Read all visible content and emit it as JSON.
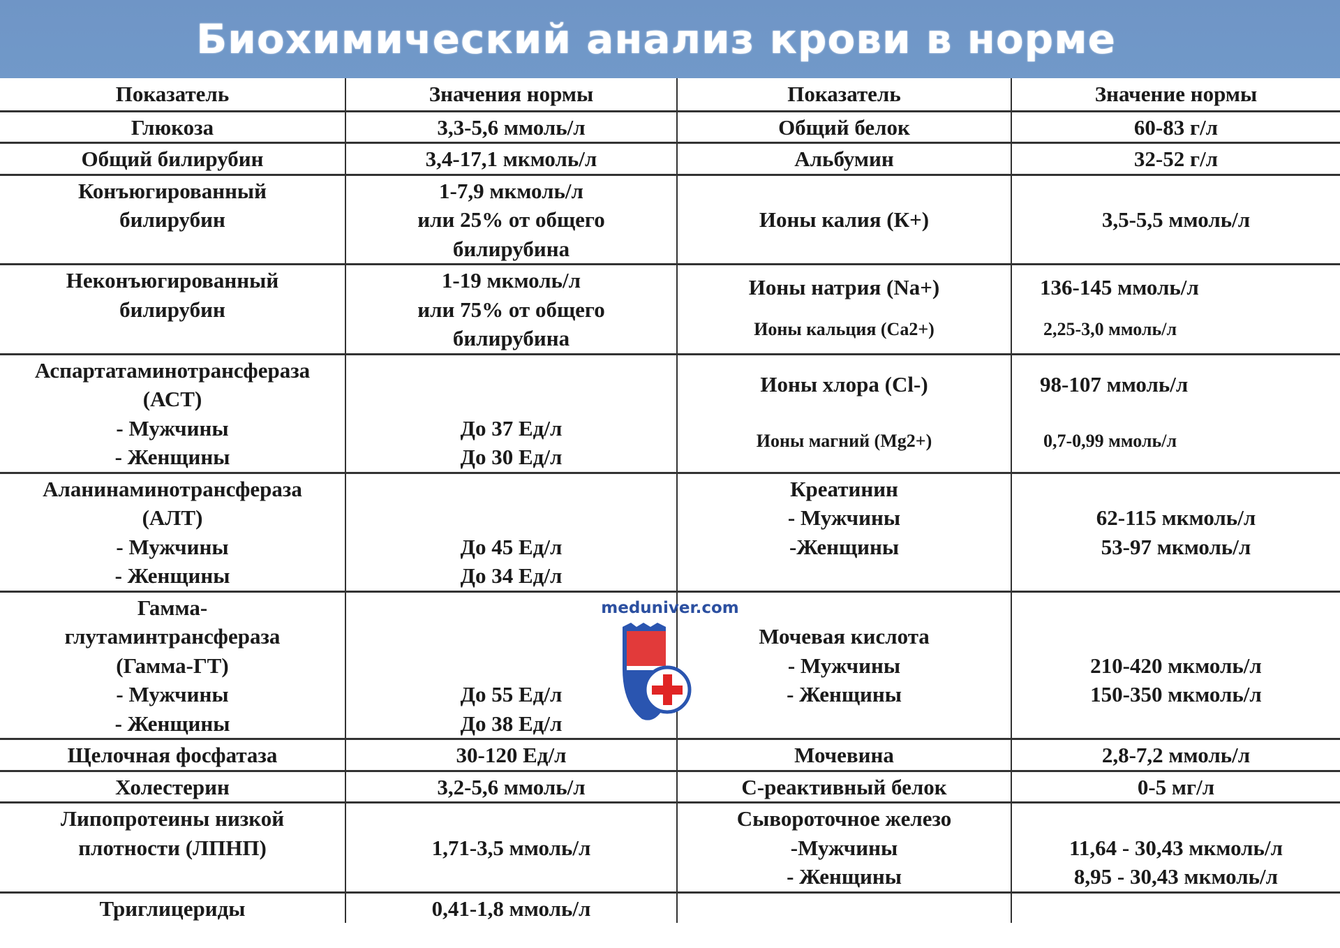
{
  "title": "Биохимический анализ крови в норме",
  "colors": {
    "banner": "#7098c8",
    "title_text": "#ffffff",
    "logo_red": "#e02424",
    "logo_blue": "#2a55b0"
  },
  "headers": [
    "Показатель",
    "Значения нормы",
    "Показатель",
    "Значение нормы"
  ],
  "rows": [
    {
      "c": [
        [
          "Глюкоза"
        ],
        [
          "3,3-5,6 ммоль/л"
        ],
        [
          "Общий белок"
        ],
        [
          "60-83 г/л"
        ]
      ]
    },
    {
      "c": [
        [
          "Общий билирубин"
        ],
        [
          "3,4-17,1 мкмоль/л"
        ],
        [
          "Альбумин"
        ],
        [
          "32-52 г/л"
        ]
      ]
    },
    {
      "c": [
        [
          "Конъюгированный",
          "билирубин"
        ],
        [
          "1-7,9 мкмоль/л",
          "или 25% от общего",
          "билирубина"
        ],
        [
          "",
          "Ионы калия (К+)"
        ],
        [
          "",
          "3,5-5,5 ммоль/л"
        ]
      ]
    },
    {
      "c": [
        [
          "Неконъюгированный",
          "билирубин"
        ],
        [
          "1-19 мкмоль/л",
          "или 75% от общего",
          "билирубина"
        ],
        [
          "Ионы натрия (Na+)",
          "Ионы кальция (Ca2+)"
        ],
        [
          "136-145 ммоль/л",
          "2,25-3,0 ммоль/л"
        ]
      ]
    },
    {
      "c": [
        [
          "Аспартатаминотрансфераза",
          "(АСТ)",
          "- Мужчины",
          "- Женщины"
        ],
        [
          "",
          "",
          "До 37 Ед/л",
          "До 30 Ед/л"
        ],
        [
          "Ионы хлора (Cl-)",
          "Ионы магний (Mg2+)"
        ],
        [
          "98-107 ммоль/л",
          "0,7-0,99 ммоль/л"
        ]
      ]
    },
    {
      "c": [
        [
          "Аланинаминотрансфераза",
          "(АЛТ)",
          "- Мужчины",
          "- Женщины"
        ],
        [
          "",
          "",
          "До 45 Ед/л",
          "До 34 Ед/л"
        ],
        [
          "Креатинин",
          "- Мужчины",
          "-Женщины"
        ],
        [
          "",
          "62-115 мкмоль/л",
          "53-97 мкмоль/л"
        ]
      ]
    },
    {
      "c": [
        [
          "Гамма-",
          "глутаминтрансфераза",
          "(Гамма-ГТ)",
          "- Мужчины",
          "- Женщины"
        ],
        [
          "",
          "",
          "",
          "До 55 Ед/л",
          "До 38 Ед/л"
        ],
        [
          "",
          "Мочевая кислота",
          "- Мужчины",
          "- Женщины"
        ],
        [
          "",
          "",
          "210-420 мкмоль/л",
          "150-350 мкмоль/л"
        ]
      ]
    },
    {
      "c": [
        [
          "Щелочная фосфатаза"
        ],
        [
          "30-120 Ед/л"
        ],
        [
          "Мочевина"
        ],
        [
          "2,8-7,2 ммоль/л"
        ]
      ]
    },
    {
      "c": [
        [
          "Холестерин"
        ],
        [
          "3,2-5,6 ммоль/л"
        ],
        [
          "С-реактивный белок"
        ],
        [
          "0-5 мг/л"
        ]
      ]
    },
    {
      "c": [
        [
          "Липопротеины низкой",
          "плотности (ЛПНП)"
        ],
        [
          "",
          "1,71-3,5 ммоль/л"
        ],
        [
          "Сывороточное железо",
          "-Мужчины",
          "- Женщины"
        ],
        [
          "",
          "11,64 - 30,43 мкмоль/л",
          "8,95 - 30,43 мкмоль/л"
        ]
      ]
    },
    {
      "c": [
        [
          "Триглицериды"
        ],
        [
          "0,41-1,8 ммоль/л"
        ],
        [],
        []
      ]
    }
  ],
  "watermark": {
    "text": "meduniver.com",
    "icon": "shield-red-cross-icon"
  }
}
